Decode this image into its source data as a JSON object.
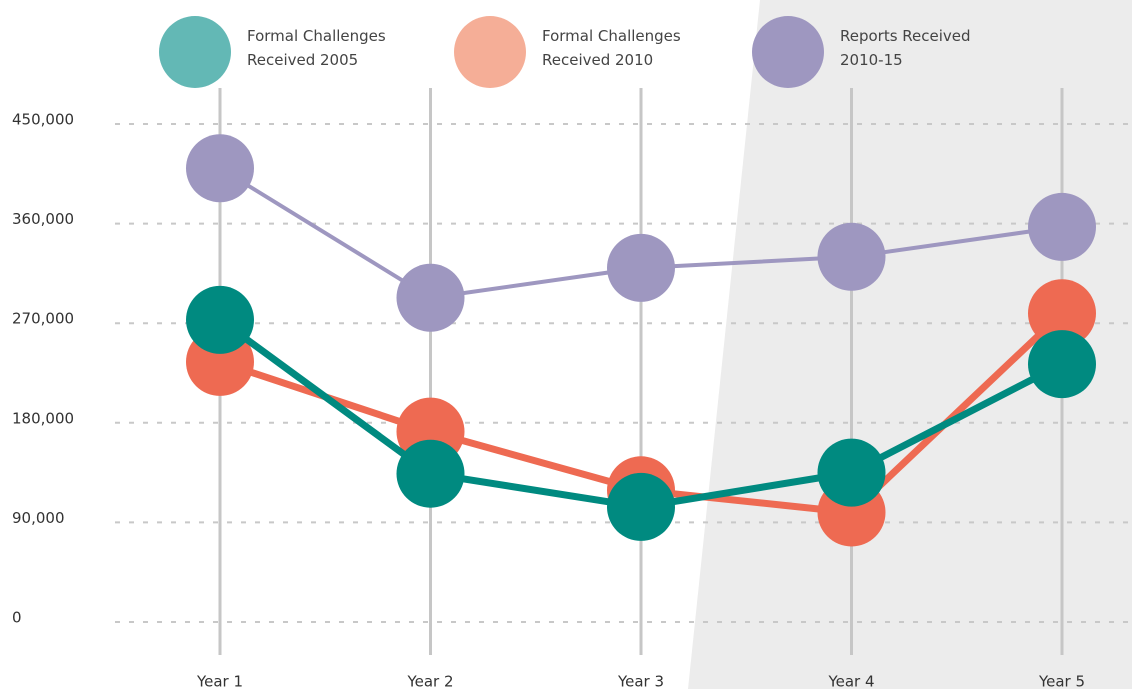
{
  "chart_data": {
    "type": "line",
    "categories": [
      "Year 1",
      "Year 2",
      "Year 3",
      "Year 4",
      "Year 5"
    ],
    "series": [
      {
        "name": "Formal Challenges\nReceived 2005",
        "color": "#008a80",
        "legend_color": "#63b8b5",
        "values": [
          273000,
          134000,
          104000,
          135000,
          233000
        ]
      },
      {
        "name": "Formal Challenges\nReceived 2010",
        "color": "#ee6a52",
        "legend_color": "#f5ae97",
        "values": [
          235000,
          172000,
          119000,
          99000,
          279000
        ]
      },
      {
        "name": "Reports Received\n2010-15",
        "color": "#9e97c0",
        "legend_color": "#9e97c0",
        "values": [
          410000,
          293000,
          320000,
          330000,
          357000
        ]
      }
    ],
    "ylim": [
      0,
      450000
    ],
    "yticks": [
      {
        "value": 0,
        "label": "0"
      },
      {
        "value": 90000,
        "label": "90,000"
      },
      {
        "value": 180000,
        "label": "180,000"
      },
      {
        "value": 270000,
        "label": "270,000"
      },
      {
        "value": 360000,
        "label": "360,000"
      },
      {
        "value": 450000,
        "label": "450,000"
      }
    ],
    "grid": true
  }
}
